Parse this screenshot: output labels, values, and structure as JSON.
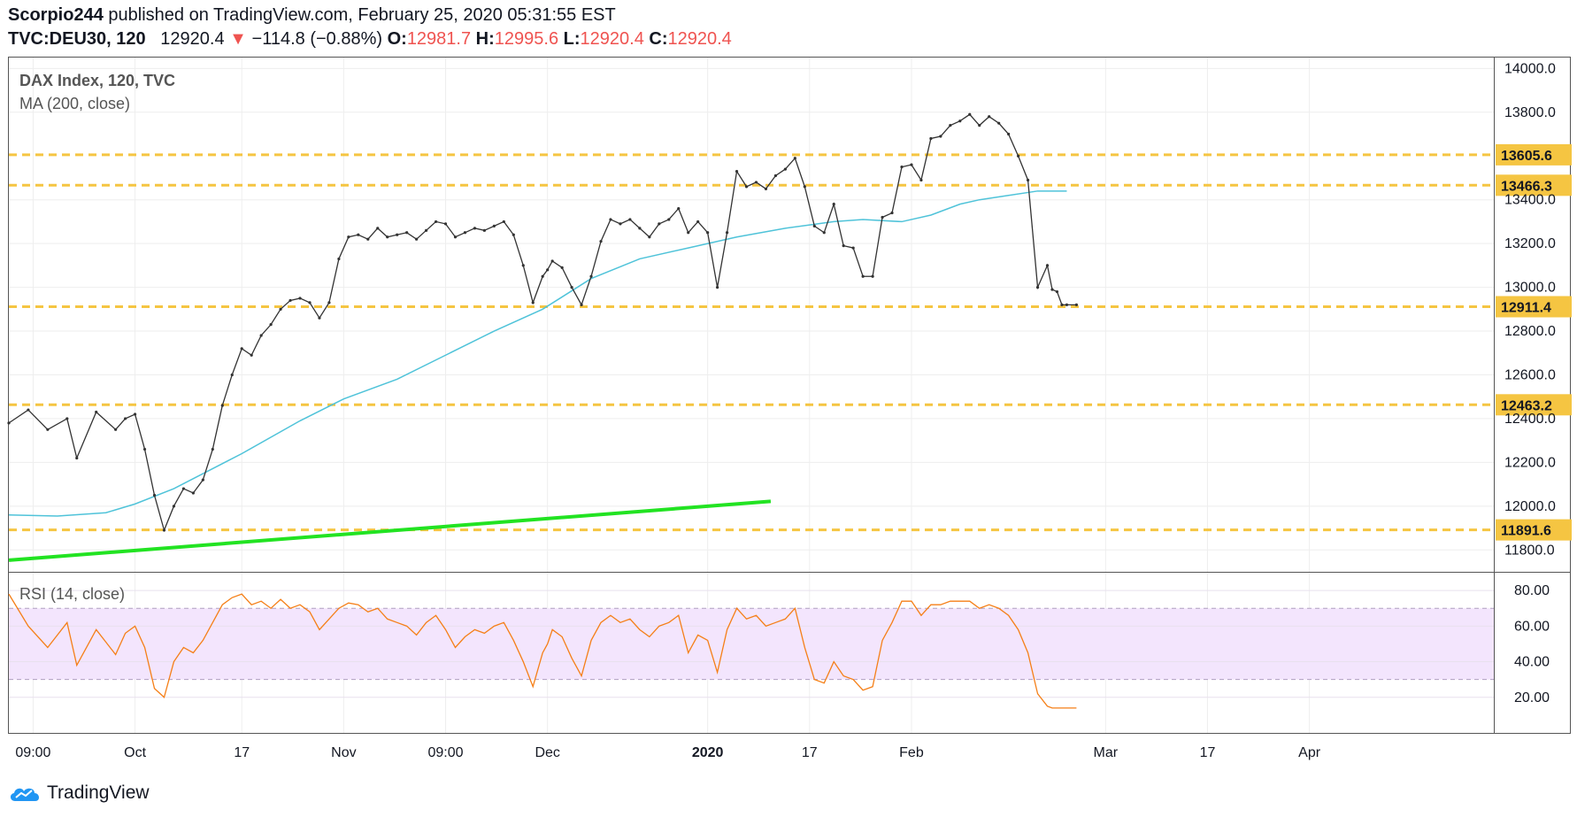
{
  "header": {
    "publisher": "Scorpio244",
    "published_text": "published on TradingView.com, February 25, 2020 05:31:55 EST",
    "symbol": "TVC:DEU30, 120",
    "last": "12920.4",
    "change": "−114.8 (−0.88%)",
    "o_label": "O:",
    "o": "12981.7",
    "h_label": "H:",
    "h": "12995.6",
    "l_label": "L:",
    "l": "12920.4",
    "c_label": "C:",
    "c": "12920.4"
  },
  "legend": {
    "title": "DAX Index, 120, TVC",
    "ma": "MA (200, close)",
    "rsi": "RSI (14, close)"
  },
  "footer": {
    "brand": "TradingView"
  },
  "colors": {
    "ma": "#4fc3d9",
    "rsi": "#f57f17",
    "rsi_band": "#f3e5fd",
    "levels": "#f5c542",
    "trendline": "#22e322",
    "candle": "#333333"
  },
  "chart_data": {
    "type": "line",
    "title": "DAX Index, 120, TVC",
    "price_axis": {
      "ylim": [
        11700,
        14050
      ],
      "ticks": [
        "14000.0",
        "13800.0",
        "13400.0",
        "13200.0",
        "13000.0",
        "12800.0",
        "12600.0",
        "12400.0",
        "12200.0",
        "12000.0",
        "11800.0"
      ],
      "tick_values": [
        14000,
        13800,
        13400,
        13200,
        13000,
        12800,
        12600,
        12400,
        12200,
        12000,
        11800
      ]
    },
    "x_axis": {
      "xlim": [
        0,
        153
      ],
      "tick_labels": [
        "09:00",
        "Oct",
        "17",
        "Nov",
        "09:00",
        "Dec",
        "2020",
        "17",
        "Feb",
        "Mar",
        "17",
        "Apr"
      ],
      "tick_positions": [
        2.5,
        13,
        24,
        34.5,
        45,
        55.5,
        72,
        82.5,
        93,
        113,
        123.5,
        134
      ]
    },
    "horizontal_levels": [
      {
        "value": 13605.6,
        "label": "13605.6"
      },
      {
        "value": 13466.3,
        "label": "13466.3"
      },
      {
        "value": 12911.4,
        "label": "12911.4"
      },
      {
        "value": 12463.2,
        "label": "12463.2"
      },
      {
        "value": 11891.6,
        "label": "11891.6"
      }
    ],
    "trendline": {
      "x": [
        0,
        78.5
      ],
      "y": [
        11753,
        12022
      ]
    },
    "ma_series": {
      "name": "MA (200, close)",
      "x": [
        0,
        5,
        10,
        13,
        17,
        24,
        30,
        34.5,
        40,
        45,
        50,
        55,
        60,
        65,
        70,
        75,
        80,
        85,
        88,
        92,
        95,
        98,
        100,
        103,
        106,
        108,
        109
      ],
      "y": [
        11960,
        11955,
        11970,
        12010,
        12080,
        12240,
        12390,
        12490,
        12580,
        12690,
        12800,
        12900,
        13040,
        13130,
        13180,
        13230,
        13270,
        13300,
        13310,
        13300,
        13330,
        13380,
        13400,
        13420,
        13440,
        13440,
        13440
      ]
    },
    "price_series": {
      "name": "DAX Index",
      "x": [
        0,
        2,
        4,
        6,
        7,
        9,
        11,
        12,
        13,
        14,
        15,
        16,
        17,
        18,
        19,
        20,
        21,
        22,
        23,
        24,
        25,
        26,
        27,
        28,
        29,
        30,
        31,
        32,
        33,
        34,
        35,
        36,
        37,
        38,
        39,
        40,
        41,
        42,
        43,
        44,
        45,
        46,
        47,
        48,
        49,
        50,
        51,
        52,
        53,
        54,
        55,
        55.5,
        56,
        57,
        58,
        59,
        60,
        61,
        62,
        63,
        64,
        65,
        66,
        67,
        68,
        69,
        70,
        71,
        72,
        73,
        74,
        75,
        76,
        77,
        78,
        79,
        80,
        81,
        82,
        83,
        84,
        85,
        86,
        87,
        88,
        89,
        90,
        91,
        92,
        93,
        94,
        95,
        96,
        97,
        98,
        99,
        100,
        101,
        102,
        103,
        104,
        105,
        106,
        107,
        107.5,
        108,
        108.5,
        109,
        110
      ],
      "y": [
        12380,
        12440,
        12350,
        12400,
        12220,
        12430,
        12350,
        12400,
        12420,
        12260,
        12050,
        11890,
        12000,
        12080,
        12060,
        12120,
        12260,
        12460,
        12600,
        12720,
        12690,
        12780,
        12830,
        12900,
        12940,
        12950,
        12930,
        12860,
        12930,
        13130,
        13230,
        13240,
        13220,
        13270,
        13230,
        13240,
        13250,
        13220,
        13260,
        13300,
        13290,
        13230,
        13250,
        13270,
        13260,
        13280,
        13300,
        13240,
        13100,
        12930,
        13050,
        13080,
        13120,
        13090,
        13000,
        12920,
        13050,
        13210,
        13310,
        13290,
        13310,
        13270,
        13230,
        13290,
        13310,
        13360,
        13250,
        13300,
        13250,
        13000,
        13250,
        13530,
        13460,
        13480,
        13450,
        13510,
        13540,
        13590,
        13460,
        13280,
        13250,
        13380,
        13190,
        13180,
        13050,
        13050,
        13320,
        13340,
        13550,
        13560,
        13490,
        13680,
        13690,
        13740,
        13760,
        13790,
        13740,
        13780,
        13750,
        13700,
        13600,
        13490,
        13000,
        13100,
        12990,
        12980,
        12920,
        12920,
        12920
      ]
    },
    "rsi_series": {
      "name": "RSI (14, close)",
      "ylim": [
        0,
        90
      ],
      "ticks": [
        "80.00",
        "60.00",
        "40.00",
        "20.00"
      ],
      "tick_values": [
        80,
        60,
        40,
        20
      ],
      "band": [
        30,
        70
      ],
      "x": [
        0,
        2,
        4,
        6,
        7,
        9,
        11,
        12,
        13,
        14,
        15,
        16,
        17,
        18,
        19,
        20,
        21,
        22,
        23,
        24,
        25,
        26,
        27,
        28,
        29,
        30,
        31,
        32,
        33,
        34,
        35,
        36,
        37,
        38,
        39,
        40,
        41,
        42,
        43,
        44,
        45,
        46,
        47,
        48,
        49,
        50,
        51,
        52,
        53,
        54,
        55,
        55.5,
        56,
        57,
        58,
        59,
        60,
        61,
        62,
        63,
        64,
        65,
        66,
        67,
        68,
        69,
        70,
        71,
        72,
        73,
        74,
        75,
        76,
        77,
        78,
        79,
        80,
        81,
        82,
        83,
        84,
        85,
        86,
        87,
        88,
        89,
        90,
        91,
        92,
        93,
        94,
        95,
        96,
        97,
        98,
        99,
        100,
        101,
        102,
        103,
        104,
        105,
        106,
        107,
        107.5,
        108,
        108.5,
        109,
        110
      ],
      "y": [
        78,
        60,
        48,
        62,
        38,
        58,
        44,
        56,
        60,
        48,
        25,
        20,
        40,
        48,
        45,
        52,
        62,
        72,
        76,
        78,
        72,
        74,
        70,
        75,
        70,
        72,
        68,
        58,
        64,
        70,
        73,
        72,
        68,
        70,
        64,
        62,
        60,
        55,
        62,
        66,
        58,
        48,
        54,
        58,
        56,
        60,
        62,
        52,
        40,
        26,
        45,
        50,
        58,
        54,
        42,
        32,
        52,
        62,
        66,
        62,
        64,
        58,
        54,
        60,
        62,
        66,
        45,
        55,
        52,
        34,
        58,
        70,
        64,
        66,
        60,
        62,
        64,
        70,
        48,
        30,
        28,
        40,
        32,
        30,
        24,
        26,
        52,
        62,
        74,
        74,
        66,
        72,
        72,
        74,
        74,
        74,
        70,
        72,
        70,
        66,
        58,
        45,
        22,
        15,
        14,
        14,
        14,
        14,
        14
      ]
    }
  }
}
